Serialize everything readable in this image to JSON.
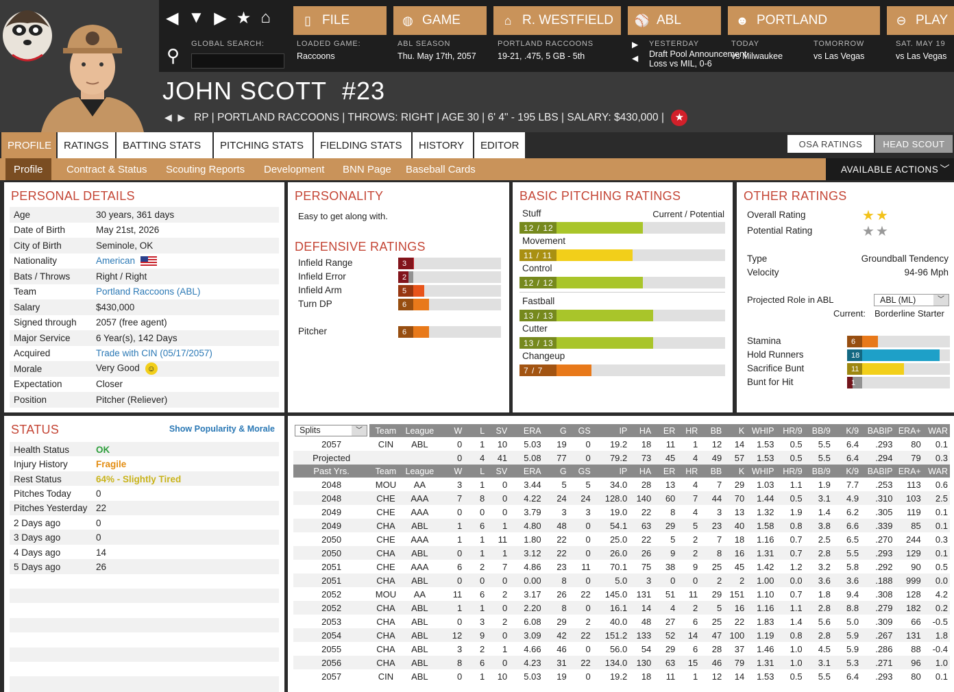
{
  "nav": {
    "file": "FILE",
    "game": "GAME",
    "manager": "R. WESTFIELD",
    "league": "ABL",
    "team": "PORTLAND",
    "play": "PLAY",
    "global_search_label": "GLOBAL SEARCH:",
    "loaded_game_label": "LOADED GAME:",
    "loaded_game_value": "Raccoons",
    "season_label": "ABL SEASON",
    "season_value": "Thu. May 17th, 2057",
    "team_label": "PORTLAND RACCOONS",
    "team_value": "19-21, .475, 5 GB - 5th",
    "yesterday_label": "YESTERDAY",
    "yesterday_line1": "Draft Pool Announcement",
    "yesterday_line2": "Loss vs MIL, 0-6",
    "today_label": "TODAY",
    "today_value": "vs Milwaukee",
    "tomorrow_label": "TOMORROW",
    "tomorrow_value": "vs Las Vegas",
    "sat_label": "SAT. MAY 19",
    "sat_value": "vs Las Vegas"
  },
  "player": {
    "name": "JOHN SCOTT",
    "number": "#23",
    "info": "RP | PORTLAND RACCOONS  |  THROWS: RIGHT  |  AGE 30  |  6' 4\" - 195 LBS  |  SALARY: $430,000  |"
  },
  "tabs": [
    "PROFILE",
    "RATINGS",
    "BATTING STATS",
    "PITCHING STATS",
    "FIELDING STATS",
    "HISTORY",
    "EDITOR"
  ],
  "subtabs": [
    "Profile",
    "Contract & Status",
    "Scouting Reports",
    "Development",
    "BNN Page",
    "Baseball Cards"
  ],
  "right_tabs": {
    "osa": "OSA RATINGS",
    "head_scout": "HEAD SCOUT"
  },
  "actions_label": "AVAILABLE ACTIONS",
  "personal": {
    "title": "PERSONAL DETAILS",
    "rows": [
      {
        "k": "Age",
        "v": "30 years, 361 days"
      },
      {
        "k": "Date of Birth",
        "v": "May 21st, 2026"
      },
      {
        "k": "City of Birth",
        "v": "Seminole, OK"
      },
      {
        "k": "Nationality",
        "v": "American"
      },
      {
        "k": "Bats / Throws",
        "v": "Right / Right"
      },
      {
        "k": "Team",
        "v": "Portland Raccoons (ABL)"
      },
      {
        "k": "Salary",
        "v": "$430,000"
      },
      {
        "k": "Signed through",
        "v": "2057 (free agent)"
      },
      {
        "k": "Major Service",
        "v": "6 Year(s), 142 Days"
      },
      {
        "k": "Acquired",
        "v": "Trade with CIN (05/17/2057)"
      },
      {
        "k": "Morale",
        "v": "Very Good"
      },
      {
        "k": "Expectation",
        "v": "Closer"
      },
      {
        "k": "Position",
        "v": "Pitcher (Reliever)"
      }
    ]
  },
  "personality": {
    "title": "PERSONALITY",
    "text": "Easy to get along with."
  },
  "defensive": {
    "title": "DEFENSIVE RATINGS",
    "rows": [
      {
        "label": "Infield Range",
        "value": 3,
        "color": "#c8202a"
      },
      {
        "label": "Infield Error",
        "value": 2,
        "color": "#c8202a"
      },
      {
        "label": "Infield Arm",
        "value": 5,
        "color": "#e8541a"
      },
      {
        "label": "Turn DP",
        "value": 6,
        "color": "#e8791a"
      },
      {
        "label": "Pitcher",
        "value": 6,
        "color": "#e8791a"
      }
    ]
  },
  "pitching": {
    "title": "BASIC PITCHING RATINGS",
    "current_potential": "Current / Potential",
    "rows": [
      {
        "label": "Stuff",
        "value": "12 / 12",
        "pct": 0.6,
        "color": "#a9c52a"
      },
      {
        "label": "Movement",
        "value": "11 / 11",
        "pct": 0.55,
        "color": "#f2cf1a"
      },
      {
        "label": "Control",
        "value": "12 / 12",
        "pct": 0.6,
        "color": "#a9c52a"
      },
      {
        "label": "Fastball",
        "value": "13 / 13",
        "pct": 0.65,
        "color": "#a9c52a"
      },
      {
        "label": "Cutter",
        "value": "13 / 13",
        "pct": 0.65,
        "color": "#a9c52a"
      },
      {
        "label": "Changeup",
        "value": "7 / 7",
        "pct": 0.35,
        "color": "#e8791a"
      }
    ]
  },
  "other": {
    "title": "OTHER RATINGS",
    "overall_label": "Overall Rating",
    "overall_stars": 2,
    "potential_label": "Potential Rating",
    "potential_stars": 2,
    "type_label": "Type",
    "type_value": "Groundball Tendency",
    "velocity_label": "Velocity",
    "velocity_value": "94-96 Mph",
    "role_label": "Projected Role in ABL",
    "role_select": "ABL (ML)",
    "current_label": "Current:",
    "current_value": "Borderline Starter",
    "bars": [
      {
        "label": "Stamina",
        "value": 6,
        "color": "#e8791a"
      },
      {
        "label": "Hold Runners",
        "value": 18,
        "color": "#1ea0c8"
      },
      {
        "label": "Sacrifice Bunt",
        "value": 11,
        "color": "#f2cf1a"
      },
      {
        "label": "Bunt for Hit",
        "value": 1,
        "color": "#b0202a"
      }
    ]
  },
  "status": {
    "title": "STATUS",
    "link": "Show Popularity & Morale",
    "rows": [
      {
        "k": "Health Status",
        "v": "OK",
        "color": "#2e9e3c"
      },
      {
        "k": "Injury History",
        "v": "Fragile",
        "color": "#e38d12"
      },
      {
        "k": "Rest Status",
        "v": "64% - Slightly Tired",
        "color": "#c9b319"
      },
      {
        "k": "Pitches Today",
        "v": "0",
        "color": "#222"
      },
      {
        "k": "Pitches Yesterday",
        "v": "22",
        "color": "#222"
      },
      {
        "k": "2 Days ago",
        "v": "0",
        "color": "#222"
      },
      {
        "k": "3 Days ago",
        "v": "0",
        "color": "#222"
      },
      {
        "k": "4 Days ago",
        "v": "14",
        "color": "#222"
      },
      {
        "k": "5 Days ago",
        "v": "26",
        "color": "#222"
      }
    ]
  },
  "stats": {
    "splits_select": "Splits",
    "headers": [
      "Team",
      "League",
      "W",
      "L",
      "SV",
      "ERA",
      "G",
      "GS",
      "IP",
      "HA",
      "ER",
      "HR",
      "BB",
      "K",
      "WHIP",
      "HR/9",
      "BB/9",
      "K/9",
      "BABIP",
      "ERA+",
      "WAR"
    ],
    "past_label": "Past Yrs.",
    "current_rows": [
      [
        "2057",
        "CIN",
        "ABL",
        "0",
        "1",
        "10",
        "5.03",
        "19",
        "0",
        "19.2",
        "18",
        "11",
        "1",
        "12",
        "14",
        "1.53",
        "0.5",
        "5.5",
        "6.4",
        ".293",
        "80",
        "0.1"
      ],
      [
        "Projected",
        "",
        "",
        "0",
        "4",
        "41",
        "5.08",
        "77",
        "0",
        "79.2",
        "73",
        "45",
        "4",
        "49",
        "57",
        "1.53",
        "0.5",
        "5.5",
        "6.4",
        ".294",
        "79",
        "0.3"
      ]
    ],
    "past_rows": [
      [
        "2048",
        "MOU",
        "AA",
        "3",
        "1",
        "0",
        "3.44",
        "5",
        "5",
        "34.0",
        "28",
        "13",
        "4",
        "7",
        "29",
        "1.03",
        "1.1",
        "1.9",
        "7.7",
        ".253",
        "113",
        "0.6"
      ],
      [
        "2048",
        "CHE",
        "AAA",
        "7",
        "8",
        "0",
        "4.22",
        "24",
        "24",
        "128.0",
        "140",
        "60",
        "7",
        "44",
        "70",
        "1.44",
        "0.5",
        "3.1",
        "4.9",
        ".310",
        "103",
        "2.5"
      ],
      [
        "2049",
        "CHE",
        "AAA",
        "0",
        "0",
        "0",
        "3.79",
        "3",
        "3",
        "19.0",
        "22",
        "8",
        "4",
        "3",
        "13",
        "1.32",
        "1.9",
        "1.4",
        "6.2",
        ".305",
        "119",
        "0.1"
      ],
      [
        "2049",
        "CHA",
        "ABL",
        "1",
        "6",
        "1",
        "4.80",
        "48",
        "0",
        "54.1",
        "63",
        "29",
        "5",
        "23",
        "40",
        "1.58",
        "0.8",
        "3.8",
        "6.6",
        ".339",
        "85",
        "0.1"
      ],
      [
        "2050",
        "CHE",
        "AAA",
        "1",
        "1",
        "11",
        "1.80",
        "22",
        "0",
        "25.0",
        "22",
        "5",
        "2",
        "7",
        "18",
        "1.16",
        "0.7",
        "2.5",
        "6.5",
        ".270",
        "244",
        "0.3"
      ],
      [
        "2050",
        "CHA",
        "ABL",
        "0",
        "1",
        "1",
        "3.12",
        "22",
        "0",
        "26.0",
        "26",
        "9",
        "2",
        "8",
        "16",
        "1.31",
        "0.7",
        "2.8",
        "5.5",
        ".293",
        "129",
        "0.1"
      ],
      [
        "2051",
        "CHE",
        "AAA",
        "6",
        "2",
        "7",
        "4.86",
        "23",
        "11",
        "70.1",
        "75",
        "38",
        "9",
        "25",
        "45",
        "1.42",
        "1.2",
        "3.2",
        "5.8",
        ".292",
        "90",
        "0.5"
      ],
      [
        "2051",
        "CHA",
        "ABL",
        "0",
        "0",
        "0",
        "0.00",
        "8",
        "0",
        "5.0",
        "3",
        "0",
        "0",
        "2",
        "2",
        "1.00",
        "0.0",
        "3.6",
        "3.6",
        ".188",
        "999",
        "0.0"
      ],
      [
        "2052",
        "MOU",
        "AA",
        "11",
        "6",
        "2",
        "3.17",
        "26",
        "22",
        "145.0",
        "131",
        "51",
        "11",
        "29",
        "151",
        "1.10",
        "0.7",
        "1.8",
        "9.4",
        ".308",
        "128",
        "4.2"
      ],
      [
        "2052",
        "CHA",
        "ABL",
        "1",
        "1",
        "0",
        "2.20",
        "8",
        "0",
        "16.1",
        "14",
        "4",
        "2",
        "5",
        "16",
        "1.16",
        "1.1",
        "2.8",
        "8.8",
        ".279",
        "182",
        "0.2"
      ],
      [
        "2053",
        "CHA",
        "ABL",
        "0",
        "3",
        "2",
        "6.08",
        "29",
        "2",
        "40.0",
        "48",
        "27",
        "6",
        "25",
        "22",
        "1.83",
        "1.4",
        "5.6",
        "5.0",
        ".309",
        "66",
        "-0.5"
      ],
      [
        "2054",
        "CHA",
        "ABL",
        "12",
        "9",
        "0",
        "3.09",
        "42",
        "22",
        "151.2",
        "133",
        "52",
        "14",
        "47",
        "100",
        "1.19",
        "0.8",
        "2.8",
        "5.9",
        ".267",
        "131",
        "1.8"
      ],
      [
        "2055",
        "CHA",
        "ABL",
        "3",
        "2",
        "1",
        "4.66",
        "46",
        "0",
        "56.0",
        "54",
        "29",
        "6",
        "28",
        "37",
        "1.46",
        "1.0",
        "4.5",
        "5.9",
        ".286",
        "88",
        "-0.4"
      ],
      [
        "2056",
        "CHA",
        "ABL",
        "8",
        "6",
        "0",
        "4.23",
        "31",
        "22",
        "134.0",
        "130",
        "63",
        "15",
        "46",
        "79",
        "1.31",
        "1.0",
        "3.1",
        "5.3",
        ".271",
        "96",
        "1.0"
      ],
      [
        "2057",
        "CIN",
        "ABL",
        "0",
        "1",
        "10",
        "5.03",
        "19",
        "0",
        "19.2",
        "18",
        "11",
        "1",
        "12",
        "14",
        "1.53",
        "0.5",
        "5.5",
        "6.4",
        ".293",
        "80",
        "0.1"
      ]
    ]
  }
}
